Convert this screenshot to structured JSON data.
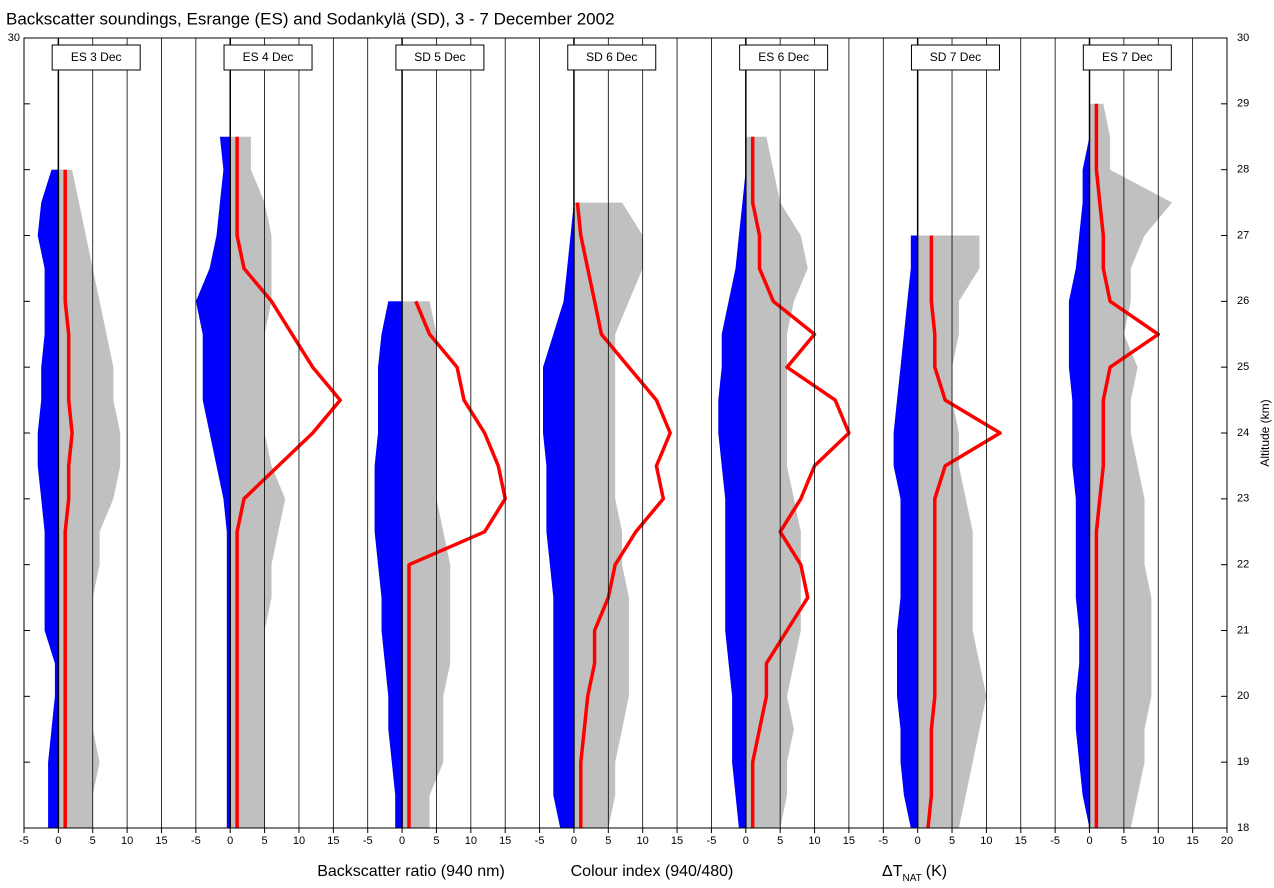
{
  "chart_data": {
    "type": "profile",
    "title": "Backscatter soundings, Esrange (ES) and Sodankylä (SD), 3 - 7 December 2002",
    "x_labels": [
      "Backscatter ratio (940 nm)",
      "Colour index (940/480)"
    ],
    "x_label_delta": [
      "ΔT",
      "NAT",
      "(K)"
    ],
    "y_label": "Altitude (km)",
    "ylim": [
      18,
      30
    ],
    "yticks": [
      18,
      19,
      20,
      21,
      22,
      23,
      24,
      25,
      26,
      27,
      28,
      29,
      30
    ],
    "panels": [
      {
        "label": "ES 3 Dec",
        "xlim": [
          -5,
          20
        ],
        "xticks": [
          -5,
          0,
          5,
          10,
          15
        ],
        "altitude": [
          18,
          18.5,
          19,
          19.5,
          20,
          20.5,
          21,
          21.5,
          22,
          22.5,
          23,
          23.5,
          24,
          24.5,
          25,
          25.5,
          26,
          26.5,
          27,
          27.5,
          28
        ],
        "series": [
          {
            "kind": "area",
            "color": "#c0c0c0",
            "values": [
              5,
              5,
              6,
              5,
              5,
              5,
              5,
              5,
              6,
              6,
              8,
              9,
              9,
              8,
              8,
              7,
              6,
              5,
              4,
              3,
              2
            ]
          },
          {
            "kind": "area",
            "color": "#0000ff",
            "values": [
              -1.5,
              -1.5,
              -1.5,
              -1,
              -0.5,
              -0.5,
              -2,
              -2,
              -2,
              -2,
              -2.5,
              -3,
              -3,
              -2.5,
              -2.5,
              -2,
              -2,
              -2,
              -3,
              -2.5,
              -1
            ]
          },
          {
            "kind": "line",
            "color": "#ff0000",
            "values": [
              1,
              1,
              1,
              1,
              1,
              1,
              1,
              1,
              1,
              1,
              1.5,
              1.5,
              2,
              1.5,
              1.5,
              1.5,
              1,
              1,
              1,
              1,
              1
            ]
          }
        ]
      },
      {
        "label": "ES 4 Dec",
        "xlim": [
          -5,
          20
        ],
        "xticks": [
          -5,
          0,
          5,
          10,
          15
        ],
        "altitude": [
          18,
          18.5,
          19,
          19.5,
          20,
          20.5,
          21,
          21.5,
          22,
          22.5,
          23,
          23.5,
          24,
          24.5,
          25,
          25.5,
          26,
          26.5,
          27,
          27.5,
          28,
          28.5
        ],
        "series": [
          {
            "kind": "area",
            "color": "#c0c0c0",
            "values": [
              5,
              5,
              5,
              5,
              5,
              5,
              5,
              6,
              6,
              7,
              8,
              6,
              5,
              5,
              5,
              5,
              6,
              6,
              6,
              5,
              3,
              3
            ]
          },
          {
            "kind": "area",
            "color": "#0000ff",
            "values": [
              -0.5,
              -0.5,
              -0.5,
              -0.5,
              -0.5,
              -0.5,
              -0.5,
              -0.5,
              -0.5,
              -0.5,
              -1,
              -2,
              -3,
              -4,
              -4,
              -4,
              -5,
              -3,
              -2,
              -1.5,
              -1,
              -1.5
            ]
          },
          {
            "kind": "line",
            "color": "#ff0000",
            "values": [
              1,
              1,
              1,
              1,
              1,
              1,
              1,
              1,
              1,
              1,
              2,
              7,
              12,
              16,
              12,
              9,
              6,
              2,
              1,
              1,
              1,
              1
            ]
          }
        ]
      },
      {
        "label": "SD 5 Dec",
        "xlim": [
          -5,
          20
        ],
        "xticks": [
          -5,
          0,
          5,
          10,
          15
        ],
        "altitude": [
          18,
          18.5,
          19,
          19.5,
          20,
          20.5,
          21,
          21.5,
          22,
          22.5,
          23,
          23.5,
          24,
          24.5,
          25,
          25.5,
          26
        ],
        "series": [
          {
            "kind": "area",
            "color": "#c0c0c0",
            "values": [
              4,
              4,
              6,
              6,
              6,
              7,
              7,
              7,
              7,
              6,
              5,
              5,
              5,
              5,
              5,
              5,
              4
            ]
          },
          {
            "kind": "area",
            "color": "#0000ff",
            "values": [
              -1,
              -1,
              -1.5,
              -2,
              -2,
              -2.5,
              -3,
              -3,
              -3.5,
              -4,
              -4,
              -4,
              -3.5,
              -3.5,
              -3.5,
              -3,
              -2
            ]
          },
          {
            "kind": "line",
            "color": "#ff0000",
            "values": [
              1,
              1,
              1,
              1,
              1,
              1,
              1,
              1,
              1,
              12,
              15,
              14,
              12,
              9,
              8,
              4,
              2
            ]
          }
        ]
      },
      {
        "label": "SD 6 Dec",
        "xlim": [
          -5,
          20
        ],
        "xticks": [
          -5,
          0,
          5,
          10,
          15
        ],
        "altitude": [
          18,
          18.5,
          19,
          19.5,
          20,
          20.5,
          21,
          21.5,
          22,
          22.5,
          23,
          23.5,
          24,
          24.5,
          25,
          25.5,
          26,
          26.5,
          27,
          27.5
        ],
        "series": [
          {
            "kind": "area",
            "color": "#c0c0c0",
            "values": [
              5,
              6,
              6,
              7,
              8,
              8,
              8,
              8,
              7,
              7,
              6,
              6,
              6,
              6,
              6,
              6,
              8,
              10,
              10,
              7
            ]
          },
          {
            "kind": "area",
            "color": "#0000ff",
            "values": [
              -2,
              -3,
              -3,
              -3,
              -3,
              -3,
              -3,
              -3,
              -3.5,
              -4,
              -4,
              -4,
              -4.5,
              -4.5,
              -4.5,
              -3,
              -1.5,
              -1,
              -0.5,
              0
            ]
          },
          {
            "kind": "line",
            "color": "#ff0000",
            "values": [
              1,
              1,
              1,
              1.5,
              2,
              3,
              3,
              5,
              6,
              9,
              13,
              12,
              14,
              12,
              8,
              4,
              3,
              2,
              1,
              0.5
            ]
          }
        ]
      },
      {
        "label": "ES 6 Dec",
        "xlim": [
          -5,
          20
        ],
        "xticks": [
          -5,
          0,
          5,
          10,
          15
        ],
        "altitude": [
          18,
          18.5,
          19,
          19.5,
          20,
          20.5,
          21,
          21.5,
          22,
          22.5,
          23,
          23.5,
          24,
          24.5,
          25,
          25.5,
          26,
          26.5,
          27,
          27.5,
          28,
          28.5
        ],
        "series": [
          {
            "kind": "area",
            "color": "#c0c0c0",
            "values": [
              5,
              6,
              6,
              7,
              6,
              7,
              8,
              8,
              8,
              8,
              7,
              6,
              6,
              6,
              6,
              6,
              7,
              9,
              8,
              5,
              4,
              3
            ]
          },
          {
            "kind": "area",
            "color": "#0000ff",
            "values": [
              -1,
              -1.5,
              -2,
              -2,
              -2,
              -2.5,
              -3,
              -3,
              -3,
              -3,
              -3,
              -3.5,
              -4,
              -4,
              -3.5,
              -3.5,
              -2.5,
              -1.5,
              -1,
              -0.5,
              0,
              0
            ]
          },
          {
            "kind": "line",
            "color": "#ff0000",
            "values": [
              1,
              1,
              1,
              2,
              3,
              3,
              6,
              9,
              8,
              5,
              8,
              10,
              15,
              13,
              6,
              10,
              4,
              2,
              2,
              1,
              1,
              1
            ]
          }
        ]
      },
      {
        "label": "SD 7 Dec",
        "xlim": [
          -5,
          20
        ],
        "xticks": [
          -5,
          0,
          5,
          10,
          15
        ],
        "altitude": [
          18,
          18.5,
          19,
          19.5,
          20,
          20.5,
          21,
          21.5,
          22,
          22.5,
          23,
          23.5,
          24,
          24.5,
          25,
          25.5,
          26,
          26.5,
          27
        ],
        "series": [
          {
            "kind": "area",
            "color": "#c0c0c0",
            "values": [
              6,
              7,
              8,
              9,
              10,
              9,
              8,
              8,
              8,
              8,
              7,
              6,
              6,
              5,
              5,
              6,
              6,
              9,
              9
            ]
          },
          {
            "kind": "area",
            "color": "#0000ff",
            "values": [
              -1,
              -2,
              -2.5,
              -2.5,
              -3,
              -3,
              -3,
              -2.5,
              -2.5,
              -2.5,
              -2.5,
              -3.5,
              -3.5,
              -3,
              -2.5,
              -2,
              -1.5,
              -1,
              -1
            ]
          },
          {
            "kind": "line",
            "color": "#ff0000",
            "values": [
              1.5,
              2,
              2,
              2,
              2.5,
              2.5,
              2.5,
              2.5,
              2.5,
              2.5,
              2.5,
              4,
              12,
              4,
              2.5,
              2.5,
              2,
              2,
              2
            ]
          }
        ]
      },
      {
        "label": "ES 7 Dec",
        "xlim": [
          -5,
          20
        ],
        "xticks": [
          -5,
          0,
          5,
          10,
          15,
          20
        ],
        "altitude": [
          18,
          18.5,
          19,
          19.5,
          20,
          20.5,
          21,
          21.5,
          22,
          22.5,
          23,
          23.5,
          24,
          24.5,
          25,
          25.5,
          26,
          26.5,
          27,
          27.5,
          28,
          28.5,
          29
        ],
        "series": [
          {
            "kind": "area",
            "color": "#c0c0c0",
            "values": [
              6,
              7,
              8,
              8,
              9,
              9,
              9,
              9,
              8,
              8,
              8,
              7,
              6,
              6,
              7,
              5,
              6,
              6,
              8,
              12,
              3,
              3,
              2
            ]
          },
          {
            "kind": "area",
            "color": "#0000ff",
            "values": [
              0,
              -1,
              -1.5,
              -2,
              -2,
              -1.5,
              -1.5,
              -2,
              -2,
              -2,
              -2,
              -2.5,
              -2.5,
              -2.5,
              -3,
              -3,
              -3,
              -2,
              -1.5,
              -1,
              -1,
              0,
              0
            ]
          },
          {
            "kind": "line",
            "color": "#ff0000",
            "values": [
              1,
              1,
              1,
              1,
              1,
              1,
              1,
              1,
              1,
              1,
              1.5,
              2,
              2,
              2,
              3,
              10,
              3,
              2,
              2,
              1.5,
              1,
              1,
              1
            ]
          }
        ]
      }
    ]
  }
}
